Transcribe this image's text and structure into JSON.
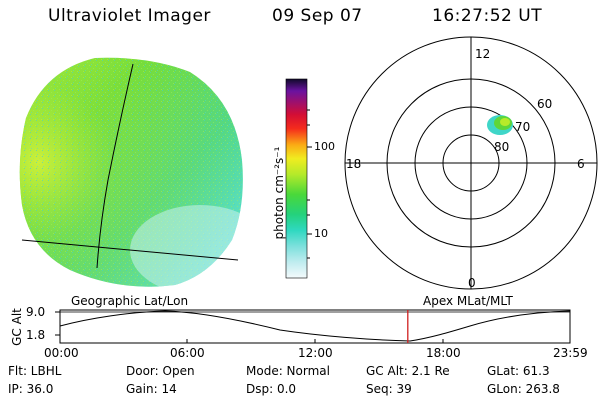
{
  "header": {
    "title": "Ultraviolet Imager",
    "date": "09 Sep 07",
    "time": "16:27:52 UT"
  },
  "colorbar": {
    "unit_label": "photon cm⁻²s⁻¹",
    "ticks": [
      "100",
      "10"
    ],
    "scale": "log"
  },
  "polar_plot": {
    "mlt_labels": {
      "top": "12",
      "right": "6",
      "bottom": "0",
      "left": "18"
    },
    "lat_labels": [
      "60",
      "70",
      "80"
    ]
  },
  "timeline": {
    "left_label": "Geographic Lat/Lon",
    "right_label": "Apex MLat/MLT",
    "y_axis_label": "GC Alt",
    "y_ticks": [
      "9.0",
      "1.8"
    ],
    "x_ticks": [
      "00:00",
      "06:00",
      "12:00",
      "18:00",
      "23:59"
    ],
    "current_time_fraction": 0.6819
  },
  "info": {
    "row1": {
      "filter": "Flt: LBHL",
      "door": "Door: Open",
      "mode": "Mode: Normal",
      "gc_alt": "GC Alt: 2.1 Re",
      "glat": "GLat:  61.3"
    },
    "row2": {
      "ip": "IP: 36.0",
      "gain": "Gain: 14",
      "dsp": "Dsp:     0.0",
      "seq": "Seq: 39",
      "glon": "GLon: 263.8"
    }
  },
  "colors": {
    "image_green": "#5fd63a",
    "image_yellow": "#c8f03a",
    "image_cyan": "#3fdcc8",
    "marker_red": "#ff2020"
  }
}
